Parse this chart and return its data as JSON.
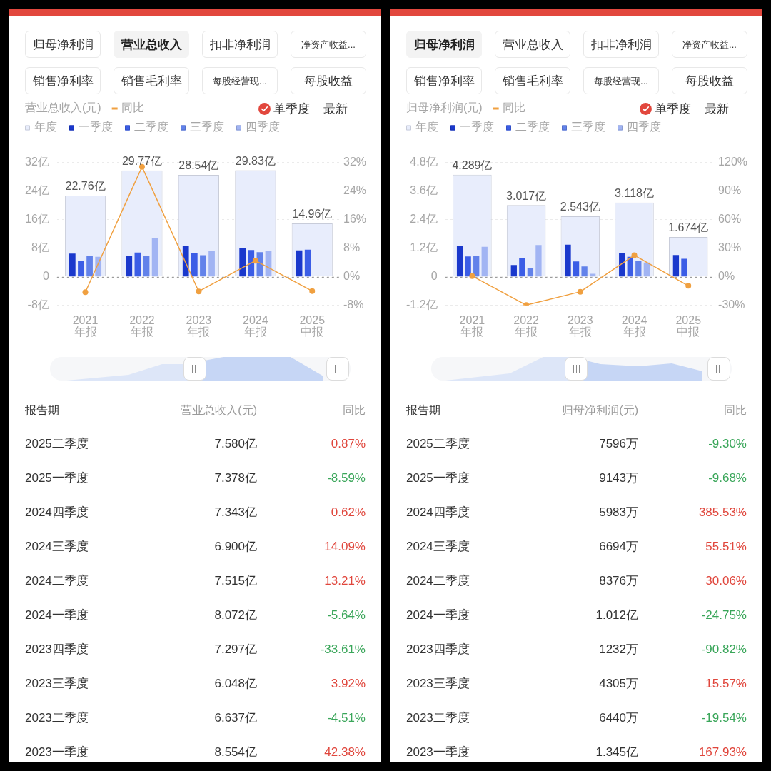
{
  "chart_data": [
    {
      "type": "bar",
      "ylabel": "营业总收入(元)",
      "legend": "top left",
      "grid": "y",
      "marker": "circle",
      "categories": [
        "2021 年报",
        "2022 年报",
        "2023 年报",
        "2024 年报",
        "2025 中报"
      ],
      "series": [
        {
          "name": "年度",
          "color": "#e8edfc",
          "values": [
            22.76,
            29.77,
            28.54,
            29.83,
            14.96
          ],
          "value_labels": [
            "22.76亿",
            "29.77亿",
            "28.54亿",
            "29.83亿",
            "14.96亿"
          ]
        },
        {
          "name": "一季度",
          "color": "#1a38cc",
          "values": [
            6.5,
            5.9,
            8.554,
            8.072,
            7.378
          ]
        },
        {
          "name": "二季度",
          "color": "#3b5de6",
          "values": [
            4.5,
            6.8,
            6.637,
            7.515,
            7.58
          ]
        },
        {
          "name": "三季度",
          "color": "#6282ea",
          "values": [
            5.9,
            5.9,
            6.048,
            6.9,
            null
          ]
        },
        {
          "name": "四季度",
          "color": "#a1b4f3",
          "values": [
            5.6,
            10.9,
            7.297,
            7.343,
            null
          ]
        },
        {
          "name": "同比",
          "type": "line",
          "axis": "y2",
          "color": "#f0a040",
          "values": [
            -4.3,
            30.8,
            -4.1,
            4.5,
            -4.0
          ]
        }
      ],
      "ylim": [
        -8,
        32
      ],
      "yticks": [
        {
          "value": -8,
          "label": "-8亿"
        },
        0,
        {
          "value": 8,
          "label": "8亿"
        },
        {
          "value": 16,
          "label": "16亿"
        },
        {
          "value": 24,
          "label": "24亿"
        },
        {
          "value": 32,
          "label": "32亿"
        }
      ],
      "y2lim": [
        -8,
        32
      ],
      "y2ticks": [
        {
          "value": -8,
          "label": "-8%"
        },
        {
          "value": 0,
          "label": "0%"
        },
        {
          "value": 8,
          "label": "8%"
        },
        {
          "value": 16,
          "label": "16%"
        },
        {
          "value": 24,
          "label": "24%"
        },
        {
          "value": 32,
          "label": "32%"
        }
      ],
      "ref_lines": [
        {
          "axis": "y",
          "value": 0,
          "color": "#9c9c9c",
          "line_style": "dotted"
        }
      ],
      "annotations": [
        "归母净利润",
        "营业总收入",
        "扣非净利润",
        "净资产收益...",
        "销售净利率",
        "销售毛利率",
        "每股经营现...",
        "每股收益",
        "单季度",
        "最新",
        "报告期",
        "营业总收入(元)",
        "同比",
        "2025二季度",
        "7.580亿",
        "0.87%",
        "2025一季度",
        "7.378亿",
        "-8.59%",
        "2024四季度",
        "7.343亿",
        "0.62%",
        "2024三季度",
        "6.900亿",
        "14.09%",
        "2024二季度",
        "7.515亿",
        "13.21%",
        "2024一季度",
        "8.072亿",
        "-5.64%",
        "2023四季度",
        "7.297亿",
        "-33.61%",
        "2023三季度",
        "6.048亿",
        "3.92%",
        "2023二季度",
        "6.637亿",
        "-4.51%",
        "2023一季度",
        "8.554亿",
        "42.38%"
      ]
    },
    {
      "type": "bar",
      "ylabel": "归母净利润(元)",
      "legend": "top left",
      "grid": "y",
      "marker": "circle",
      "categories": [
        "2021 年报",
        "2022 年报",
        "2023 年报",
        "2024 年报",
        "2025 中报"
      ],
      "series": [
        {
          "name": "年度",
          "color": "#e8edfc",
          "values": [
            4.289,
            3.017,
            2.543,
            3.118,
            1.674
          ],
          "value_labels": [
            "4.289亿",
            "3.017亿",
            "2.543亿",
            "3.118亿",
            "1.674亿"
          ]
        },
        {
          "name": "一季度",
          "color": "#1a38cc",
          "values": [
            1.28,
            0.49,
            1.345,
            1.012,
            0.9143
          ]
        },
        {
          "name": "二季度",
          "color": "#3b5de6",
          "values": [
            0.85,
            0.8,
            0.644,
            0.8376,
            0.7596
          ]
        },
        {
          "name": "三季度",
          "color": "#6282ea",
          "values": [
            0.89,
            0.36,
            0.4305,
            0.6694,
            null
          ]
        },
        {
          "name": "四季度",
          "color": "#a1b4f3",
          "values": [
            1.26,
            1.33,
            0.1232,
            0.5983,
            null
          ]
        },
        {
          "name": "同比",
          "type": "line",
          "axis": "y2",
          "color": "#f0a040",
          "values": [
            0.8,
            -29.7,
            -15.7,
            22.6,
            -9.5
          ]
        }
      ],
      "ylim": [
        -1.2,
        4.8
      ],
      "yticks": [
        {
          "value": -1.2,
          "label": "-1.2亿"
        },
        0,
        {
          "value": 1.2,
          "label": "1.2亿"
        },
        {
          "value": 2.4,
          "label": "2.4亿"
        },
        {
          "value": 3.6,
          "label": "3.6亿"
        },
        {
          "value": 4.8,
          "label": "4.8亿"
        }
      ],
      "y2lim": [
        -30,
        120
      ],
      "y2ticks": [
        {
          "value": -30,
          "label": "-30%"
        },
        {
          "value": 0,
          "label": "0%"
        },
        {
          "value": 30,
          "label": "30%"
        },
        {
          "value": 60,
          "label": "60%"
        },
        {
          "value": 90,
          "label": "90%"
        },
        {
          "value": 120,
          "label": "120%"
        }
      ],
      "ref_lines": [
        {
          "axis": "y",
          "value": 0,
          "color": "#9c9c9c",
          "line_style": "dotted"
        }
      ],
      "annotations": [
        "归母净利润",
        "营业总收入",
        "扣非净利润",
        "净资产收益...",
        "销售净利率",
        "销售毛利率",
        "每股经营现...",
        "每股收益",
        "单季度",
        "最新",
        "报告期",
        "归母净利润(元)",
        "同比",
        "2025二季度",
        "7596万",
        "-9.30%",
        "2025一季度",
        "9143万",
        "-9.68%",
        "2024四季度",
        "5983万",
        "385.53%",
        "2024三季度",
        "6694万",
        "55.51%",
        "2024二季度",
        "8376万",
        "30.06%",
        "2024一季度",
        "1.012亿",
        "-24.75%",
        "2023四季度",
        "1232万",
        "-90.82%",
        "2023三季度",
        "4305万",
        "15.57%",
        "2023二季度",
        "6440万",
        "-19.54%",
        "2023一季度",
        "1.345亿",
        "167.93%"
      ]
    }
  ]
}
